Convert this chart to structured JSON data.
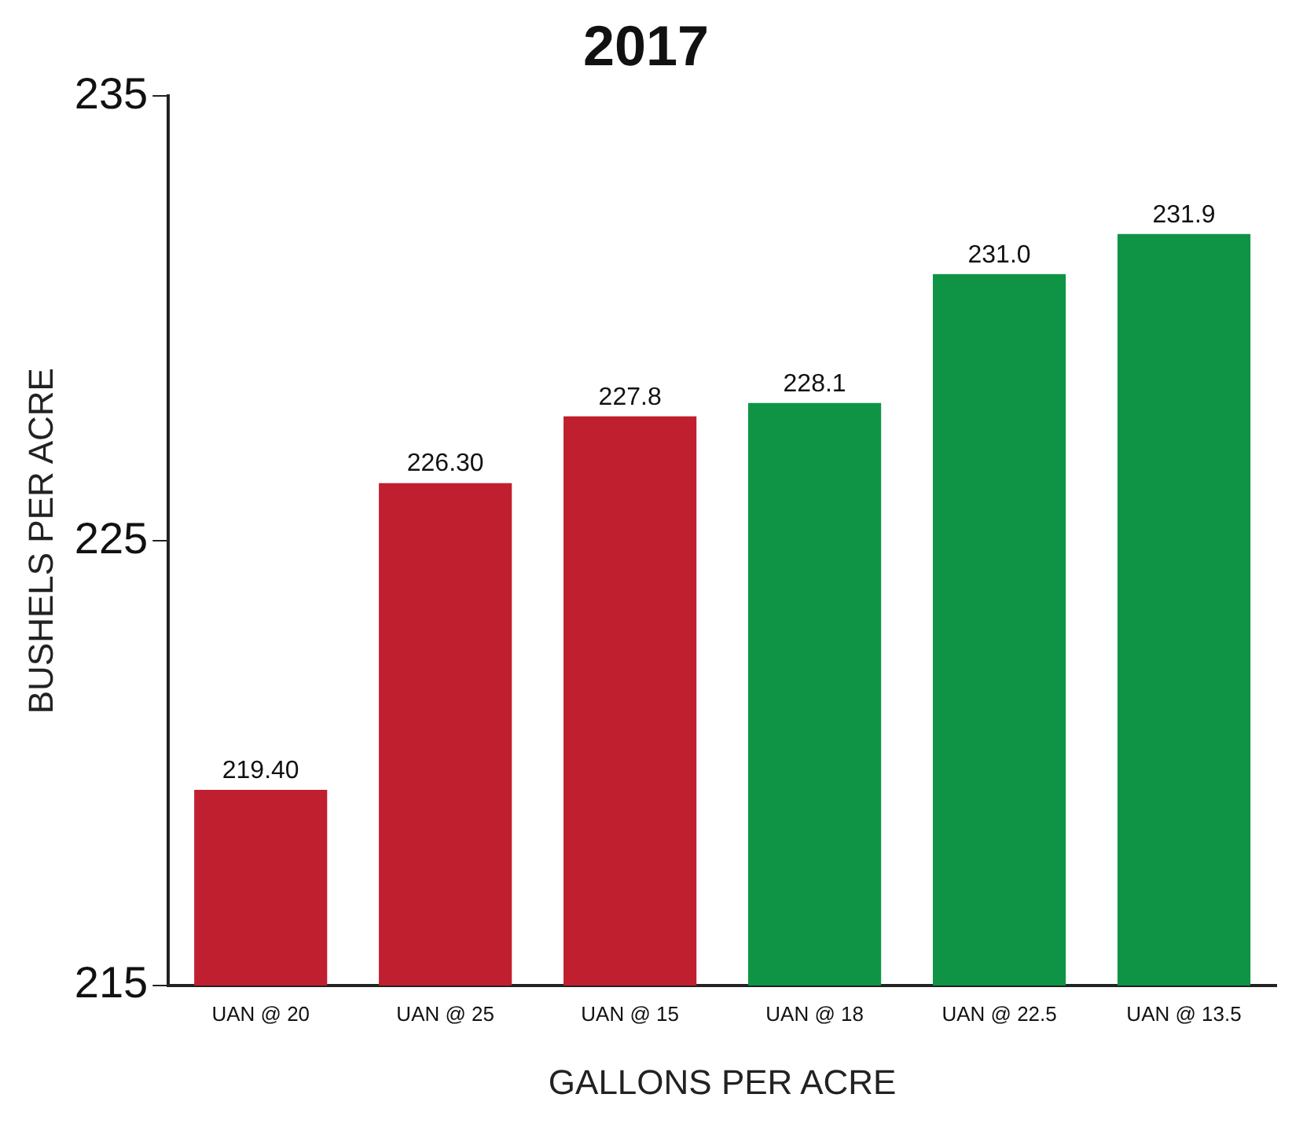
{
  "chart_data": {
    "type": "bar",
    "title": "2017",
    "xlabel": "GALLONS PER ACRE",
    "ylabel": "BUSHELS PER ACRE",
    "categories": [
      "UAN @ 20",
      "UAN @ 25",
      "UAN @ 15",
      "UAN @ 18",
      "UAN @ 22.5",
      "UAN @ 13.5"
    ],
    "values": [
      219.4,
      226.3,
      227.8,
      228.1,
      231.0,
      231.9
    ],
    "colors": [
      "#c01f2f",
      "#c01f2f",
      "#c01f2f",
      "#0f9445",
      "#0f9445",
      "#0f9445"
    ],
    "value_labels": [
      "219.40",
      "226.30",
      "227.8",
      "228.1",
      "231.0",
      "231.9"
    ],
    "ylim": [
      215,
      235
    ],
    "yticks": [
      215,
      225,
      235
    ],
    "grid": false,
    "legend": false
  }
}
